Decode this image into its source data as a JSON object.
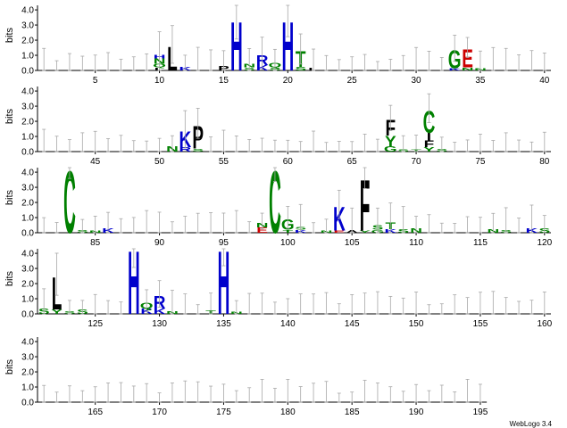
{
  "chart_data": {
    "type": "sequence-logo",
    "ylabel": "bits",
    "ylim": [
      0,
      4.3
    ],
    "yticks": [
      "0.0",
      "1.0",
      "2.0",
      "3.0",
      "4.0"
    ],
    "positions_per_row": 40,
    "total_positions": 195,
    "colors": {
      "hydrophobic": "#000000",
      "hydrophilic": "#008000",
      "basic": "#0000cc",
      "acidic": "#cc0000",
      "error_bar": "#a8a8a8"
    },
    "rows": [
      {
        "start": 1,
        "end": 40,
        "ticks": [
          "5",
          "10",
          "15",
          "20",
          "25",
          "30",
          "35",
          "40"
        ]
      },
      {
        "start": 41,
        "end": 80,
        "ticks": [
          "45",
          "50",
          "55",
          "60",
          "65",
          "70",
          "75",
          "80"
        ]
      },
      {
        "start": 81,
        "end": 120,
        "ticks": [
          "85",
          "90",
          "95",
          "100",
          "105",
          "110",
          "115",
          "120"
        ]
      },
      {
        "start": 121,
        "end": 160,
        "ticks": [
          "125",
          "130",
          "135",
          "140",
          "145",
          "150",
          "155",
          "160"
        ]
      },
      {
        "start": 161,
        "end": 195,
        "ticks": [
          "165",
          "170",
          "175",
          "180",
          "185",
          "190",
          "195"
        ]
      }
    ],
    "columns": [
      {
        "pos": 10,
        "stack": [
          [
            "L",
            0.2
          ],
          [
            "Q",
            0.25
          ],
          [
            "N",
            0.35
          ],
          [
            "H",
            0.25
          ]
        ]
      },
      {
        "pos": 11,
        "stack": [
          [
            "L",
            1.6
          ]
        ]
      },
      {
        "pos": 12,
        "stack": [
          [
            "K",
            0.25
          ]
        ]
      },
      {
        "pos": 15,
        "stack": [
          [
            "P",
            0.3
          ]
        ]
      },
      {
        "pos": 16,
        "stack": [
          [
            "H",
            3.3
          ]
        ]
      },
      {
        "pos": 17,
        "stack": [
          [
            "S",
            0.2
          ],
          [
            "N",
            0.25
          ]
        ]
      },
      {
        "pos": 18,
        "stack": [
          [
            "K",
            0.35
          ],
          [
            "R",
            0.65
          ]
        ]
      },
      {
        "pos": 19,
        "stack": [
          [
            "S",
            0.2
          ],
          [
            "Q",
            0.3
          ]
        ]
      },
      {
        "pos": 20,
        "stack": [
          [
            "H",
            3.3
          ]
        ]
      },
      {
        "pos": 21,
        "stack": [
          [
            "S",
            0.25
          ],
          [
            "T",
            1.05
          ]
        ]
      },
      {
        "pos": 22,
        "stack": [
          [
            "L",
            0.2
          ]
        ]
      },
      {
        "pos": 33,
        "stack": [
          [
            "K",
            0.15
          ],
          [
            "G",
            1.2
          ]
        ]
      },
      {
        "pos": 34,
        "stack": [
          [
            "N",
            0.2
          ],
          [
            "E",
            1.2
          ]
        ]
      },
      {
        "pos": 35,
        "stack": [
          [
            "N",
            0.15
          ]
        ]
      },
      {
        "pos": 51,
        "stack": [
          [
            "N",
            0.35
          ]
        ]
      },
      {
        "pos": 52,
        "stack": [
          [
            "R",
            0.3
          ],
          [
            "K",
            1.05
          ]
        ]
      },
      {
        "pos": 53,
        "stack": [
          [
            "S",
            0.2
          ],
          [
            "P",
            1.55
          ]
        ]
      },
      {
        "pos": 68,
        "stack": [
          [
            "G",
            0.35
          ],
          [
            "Y",
            0.7
          ],
          [
            "F",
            1.05
          ]
        ]
      },
      {
        "pos": 69,
        "stack": [
          [
            "S",
            0.15
          ]
        ]
      },
      {
        "pos": 70,
        "stack": [
          [
            "T",
            0.15
          ]
        ]
      },
      {
        "pos": 71,
        "stack": [
          [
            "Y",
            0.3
          ],
          [
            "F",
            0.45
          ],
          [
            "I",
            0.5
          ],
          [
            "C",
            1.5
          ]
        ]
      },
      {
        "pos": 72,
        "stack": [
          [
            "S",
            0.2
          ]
        ]
      },
      {
        "pos": 83,
        "stack": [
          [
            "C",
            4.2
          ]
        ]
      },
      {
        "pos": 84,
        "stack": [
          [
            "S",
            0.2
          ]
        ]
      },
      {
        "pos": 85,
        "stack": [
          [
            "N",
            0.15
          ]
        ]
      },
      {
        "pos": 86,
        "stack": [
          [
            "K",
            0.3
          ]
        ]
      },
      {
        "pos": 98,
        "stack": [
          [
            "E",
            0.35
          ],
          [
            "N",
            0.3
          ]
        ]
      },
      {
        "pos": 99,
        "stack": [
          [
            "C",
            4.2
          ]
        ]
      },
      {
        "pos": 100,
        "stack": [
          [
            "T",
            0.2
          ],
          [
            "G",
            0.7
          ]
        ]
      },
      {
        "pos": 101,
        "stack": [
          [
            "K",
            0.2
          ],
          [
            "S",
            0.2
          ]
        ]
      },
      {
        "pos": 103,
        "stack": [
          [
            "N",
            0.15
          ]
        ]
      },
      {
        "pos": 104,
        "stack": [
          [
            "E",
            0.15
          ],
          [
            "K",
            1.6
          ]
        ]
      },
      {
        "pos": 105,
        "stack": [
          [
            "A",
            0.2
          ]
        ]
      },
      {
        "pos": 106,
        "stack": [
          [
            "Y",
            0.15
          ],
          [
            "F",
            3.45
          ]
        ]
      },
      {
        "pos": 107,
        "stack": [
          [
            "G",
            0.2
          ],
          [
            "S",
            0.3
          ]
        ]
      },
      {
        "pos": 108,
        "stack": [
          [
            "K",
            0.25
          ],
          [
            "T",
            0.45
          ]
        ]
      },
      {
        "pos": 109,
        "stack": [
          [
            "S",
            0.25
          ]
        ]
      },
      {
        "pos": 110,
        "stack": [
          [
            "N",
            0.3
          ]
        ]
      },
      {
        "pos": 116,
        "stack": [
          [
            "N",
            0.25
          ]
        ]
      },
      {
        "pos": 117,
        "stack": [
          [
            "S",
            0.2
          ]
        ]
      },
      {
        "pos": 119,
        "stack": [
          [
            "K",
            0.3
          ]
        ]
      },
      {
        "pos": 120,
        "stack": [
          [
            "S",
            0.3
          ]
        ]
      },
      {
        "pos": 121,
        "stack": [
          [
            "S",
            0.35
          ]
        ]
      },
      {
        "pos": 122,
        "stack": [
          [
            "Y",
            0.3
          ],
          [
            "L",
            2.2
          ]
        ]
      },
      {
        "pos": 123,
        "stack": [
          [
            "S",
            0.2
          ]
        ]
      },
      {
        "pos": 124,
        "stack": [
          [
            "S",
            0.3
          ]
        ]
      },
      {
        "pos": 128,
        "stack": [
          [
            "H",
            4.3
          ]
        ]
      },
      {
        "pos": 129,
        "stack": [
          [
            "K",
            0.35
          ],
          [
            "Q",
            0.4
          ]
        ]
      },
      {
        "pos": 130,
        "stack": [
          [
            "K",
            0.35
          ],
          [
            "R",
            0.85
          ]
        ]
      },
      {
        "pos": 131,
        "stack": [
          [
            "N",
            0.2
          ]
        ]
      },
      {
        "pos": 134,
        "stack": [
          [
            "T",
            0.25
          ]
        ]
      },
      {
        "pos": 135,
        "stack": [
          [
            "H",
            4.3
          ]
        ]
      },
      {
        "pos": 136,
        "stack": [
          [
            "N",
            0.15
          ]
        ]
      }
    ]
  },
  "footer": {
    "credit": "WebLogo 3.4"
  }
}
